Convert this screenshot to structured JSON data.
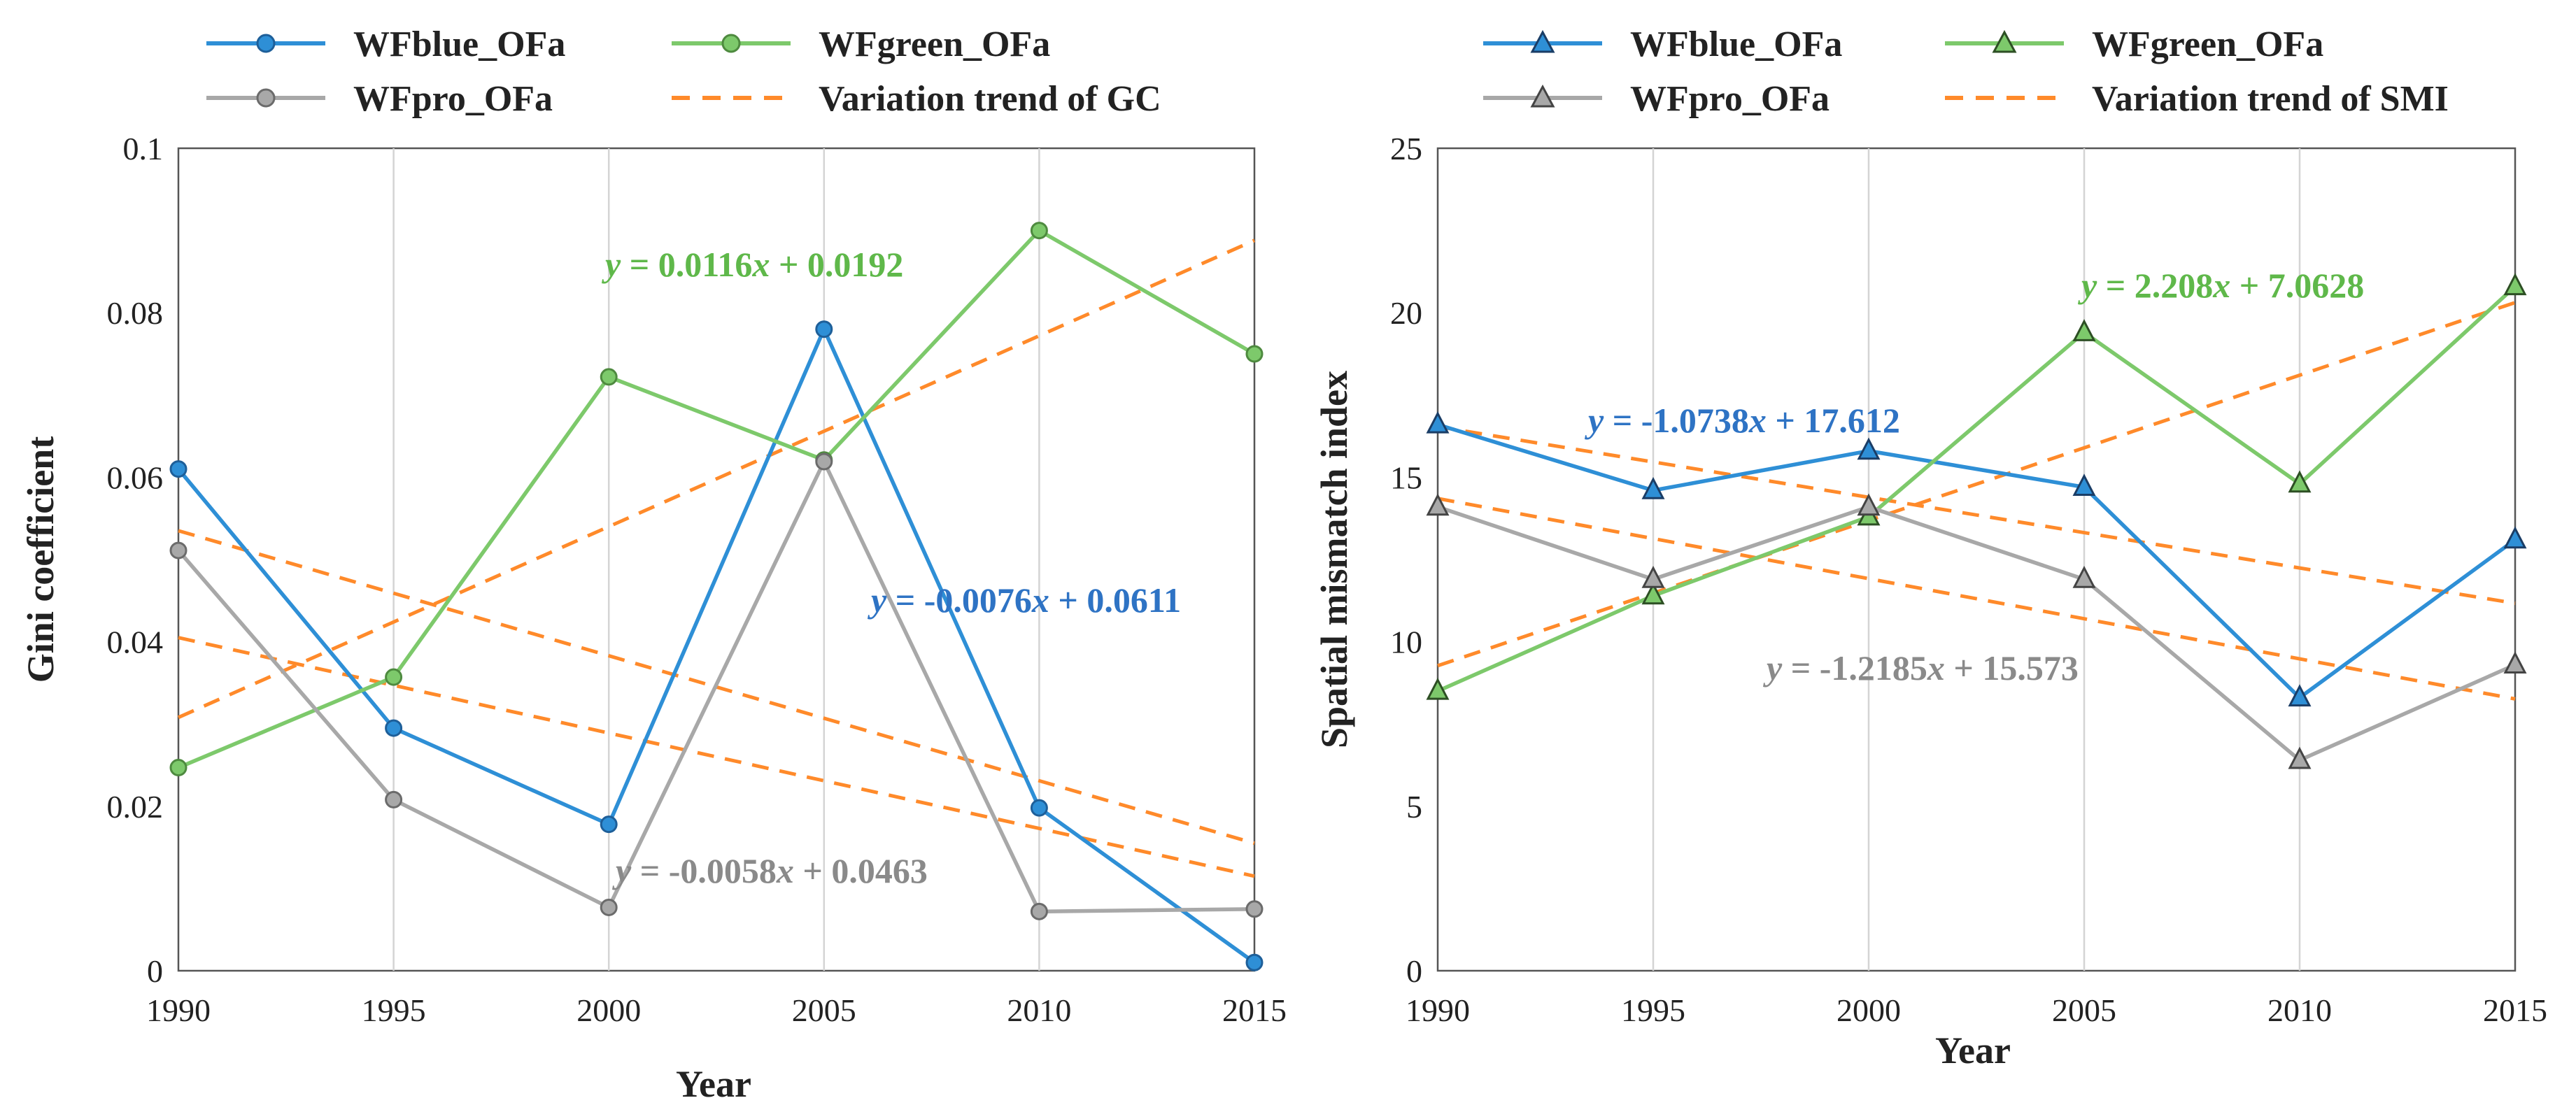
{
  "chart_data": [
    {
      "type": "line",
      "xlabel": "Year",
      "ylabel": "Gini coefficient",
      "x": [
        1990,
        1995,
        2000,
        2005,
        2010,
        2015
      ],
      "xlim": [
        1990,
        2015
      ],
      "ylim": [
        0,
        0.1
      ],
      "yticks": [
        "0",
        "0.02",
        "0.04",
        "0.06",
        "0.08",
        "0.1"
      ],
      "yticks_values": [
        0,
        0.02,
        0.04,
        0.06,
        0.08,
        0.1
      ],
      "xticks": [
        "1990",
        "1995",
        "2000",
        "2005",
        "2010",
        "2015"
      ],
      "marker": "circle",
      "grid": "vertical",
      "series": [
        {
          "key": "blue",
          "name": "WFblue_OFa",
          "color": "#2e8fd6",
          "values": [
            0.061,
            0.0295,
            0.0178,
            0.078,
            0.0198,
            0.001
          ]
        },
        {
          "key": "green",
          "name": "WFgreen_OFa",
          "color": "#7dc96b",
          "values": [
            0.0247,
            0.0357,
            0.0722,
            0.0621,
            0.09,
            0.075
          ]
        },
        {
          "key": "pro",
          "name": "WFpro_OFa",
          "color": "#a8a8a8",
          "values": [
            0.0511,
            0.0208,
            0.0077,
            0.0619,
            0.0072,
            0.0075
          ]
        }
      ],
      "trend_legend": "Variation trend of GC",
      "trend_color": "#ff8a2a",
      "trends": [
        {
          "slope": 0.0116,
          "intercept": 0.0192
        },
        {
          "slope": -0.0076,
          "intercept": 0.0611
        },
        {
          "slope": -0.0058,
          "intercept": 0.0463
        }
      ],
      "equations": [
        {
          "text": "y = 0.0116x + 0.0192",
          "color": "#5fb84a"
        },
        {
          "text": "y = -0.0076x + 0.0611",
          "color": "#2e73c4"
        },
        {
          "text": "y = -0.0058x + 0.0463",
          "color": "#8a8a8a"
        }
      ],
      "legend": {
        "blue": "WFblue_OFa",
        "green": "WFgreen_OFa",
        "pro": "WFpro_OFa",
        "trend": "Variation trend of GC"
      }
    },
    {
      "type": "line",
      "xlabel": "Year",
      "ylabel": "Spatial mismatch index",
      "x": [
        1990,
        1995,
        2000,
        2005,
        2010,
        2015
      ],
      "xlim": [
        1990,
        2015
      ],
      "ylim": [
        0,
        25
      ],
      "yticks": [
        "0",
        "5",
        "10",
        "15",
        "20",
        "25"
      ],
      "yticks_values": [
        0,
        5,
        10,
        15,
        20,
        25
      ],
      "xticks": [
        "1990",
        "1995",
        "2000",
        "2005",
        "2010",
        "2015"
      ],
      "marker": "triangle",
      "grid": "vertical",
      "series": [
        {
          "key": "blue",
          "name": "WFblue_OFa",
          "color": "#2e8fd6",
          "values": [
            16.6,
            14.6,
            15.8,
            14.7,
            8.3,
            13.1
          ]
        },
        {
          "key": "green",
          "name": "WFgreen_OFa",
          "color": "#7dc96b",
          "values": [
            8.5,
            11.4,
            13.8,
            19.4,
            14.8,
            20.8
          ]
        },
        {
          "key": "pro",
          "name": "WFpro_OFa",
          "color": "#a8a8a8",
          "values": [
            14.1,
            11.9,
            14.1,
            11.9,
            6.4,
            9.3
          ]
        }
      ],
      "trend_legend": "Variation trend of SMI",
      "trend_color": "#ff8a2a",
      "trends": [
        {
          "slope": 2.208,
          "intercept": 7.0628
        },
        {
          "slope": -1.0738,
          "intercept": 17.612
        },
        {
          "slope": -1.2185,
          "intercept": 15.573
        }
      ],
      "equations": [
        {
          "text": "y = 2.208x + 7.0628",
          "color": "#5fb84a"
        },
        {
          "text": "y = -1.0738x + 17.612",
          "color": "#2e73c4"
        },
        {
          "text": "y = -1.2185x + 15.573",
          "color": "#8a8a8a"
        }
      ],
      "legend": {
        "blue": "WFblue_OFa",
        "green": "WFgreen_OFa",
        "pro": "WFpro_OFa",
        "trend": "Variation trend of SMI"
      }
    }
  ]
}
